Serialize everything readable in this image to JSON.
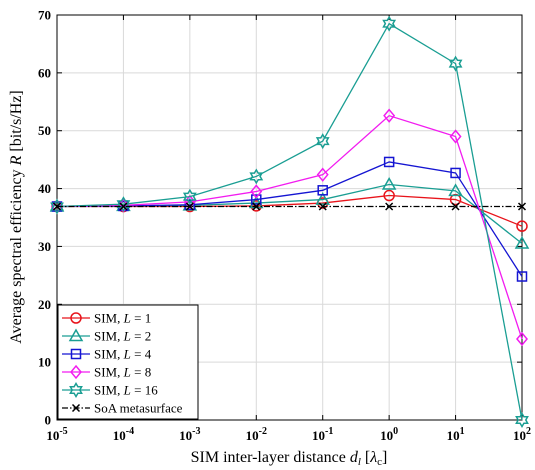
{
  "chart_data": {
    "type": "line",
    "x_scale": "log",
    "x": [
      "1e-5",
      "1e-4",
      "1e-3",
      "1e-2",
      "1e-1",
      "1e0",
      "1e1",
      "1e2"
    ],
    "x_values": [
      1e-05,
      0.0001,
      0.001,
      0.01,
      0.1,
      1,
      10,
      100
    ],
    "x_ticks": [
      {
        "base": "10",
        "exp": "-5"
      },
      {
        "base": "10",
        "exp": "-4"
      },
      {
        "base": "10",
        "exp": "-3"
      },
      {
        "base": "10",
        "exp": "-2"
      },
      {
        "base": "10",
        "exp": "-1"
      },
      {
        "base": "10",
        "exp": "0"
      },
      {
        "base": "10",
        "exp": "1"
      },
      {
        "base": "10",
        "exp": "2"
      }
    ],
    "y_ticks": [
      "0",
      "10",
      "20",
      "30",
      "40",
      "50",
      "60",
      "70"
    ],
    "ylim": [
      0,
      70
    ],
    "xlabel": "SIM inter-layer distance",
    "xlabel_math": "d",
    "xlabel_sub": "l",
    "xlabel_unit_sym": "λ",
    "xlabel_unit_sub": "c",
    "ylabel": "Average spectral efficiency",
    "ylabel_math": "R",
    "ylabel_unit": "[bit/s/Hz]",
    "grid": true,
    "legend_position": "bottom-left",
    "series": [
      {
        "name": "SIM, L = 1",
        "name_prefix": "SIM, ",
        "name_var": "L",
        "name_suffix": " = 1",
        "color": "#e8141b",
        "marker": "circle",
        "dash": "",
        "values": [
          36.9,
          36.9,
          36.9,
          37.0,
          37.5,
          38.8,
          38.1,
          33.5
        ]
      },
      {
        "name": "SIM, L = 2",
        "name_prefix": "SIM, ",
        "name_var": "L",
        "name_suffix": " = 2",
        "color": "#1a9e93",
        "marker": "triangle",
        "dash": "",
        "values": [
          36.9,
          37.0,
          37.1,
          37.5,
          38.1,
          40.7,
          39.6,
          30.5
        ]
      },
      {
        "name": "SIM, L = 4",
        "name_prefix": "SIM, ",
        "name_var": "L",
        "name_suffix": " = 4",
        "color": "#1515d2",
        "marker": "square",
        "dash": "",
        "values": [
          36.9,
          37.0,
          37.2,
          38.1,
          39.7,
          44.6,
          42.7,
          24.8
        ]
      },
      {
        "name": "SIM, L = 8",
        "name_prefix": "SIM, ",
        "name_var": "L",
        "name_suffix": " = 8",
        "color": "#f21cf0",
        "marker": "diamond",
        "dash": "",
        "values": [
          36.9,
          37.1,
          37.7,
          39.5,
          42.4,
          52.6,
          49.0,
          14.0
        ]
      },
      {
        "name": "SIM, L = 16",
        "name_prefix": "SIM, ",
        "name_var": "L",
        "name_suffix": " = 16",
        "color": "#1a9e93",
        "marker": "hexagram",
        "dash": "",
        "values": [
          36.9,
          37.3,
          38.6,
          42.1,
          48.2,
          68.5,
          61.6,
          0.0
        ]
      },
      {
        "name": "SoA metasurface",
        "name_prefix": "SoA metasurface",
        "name_var": "",
        "name_suffix": "",
        "color": "#000000",
        "marker": "x",
        "dash": "6,2,1.5,2",
        "values": [
          36.9,
          36.9,
          36.9,
          36.9,
          36.9,
          36.9,
          36.9,
          36.9
        ]
      }
    ]
  }
}
